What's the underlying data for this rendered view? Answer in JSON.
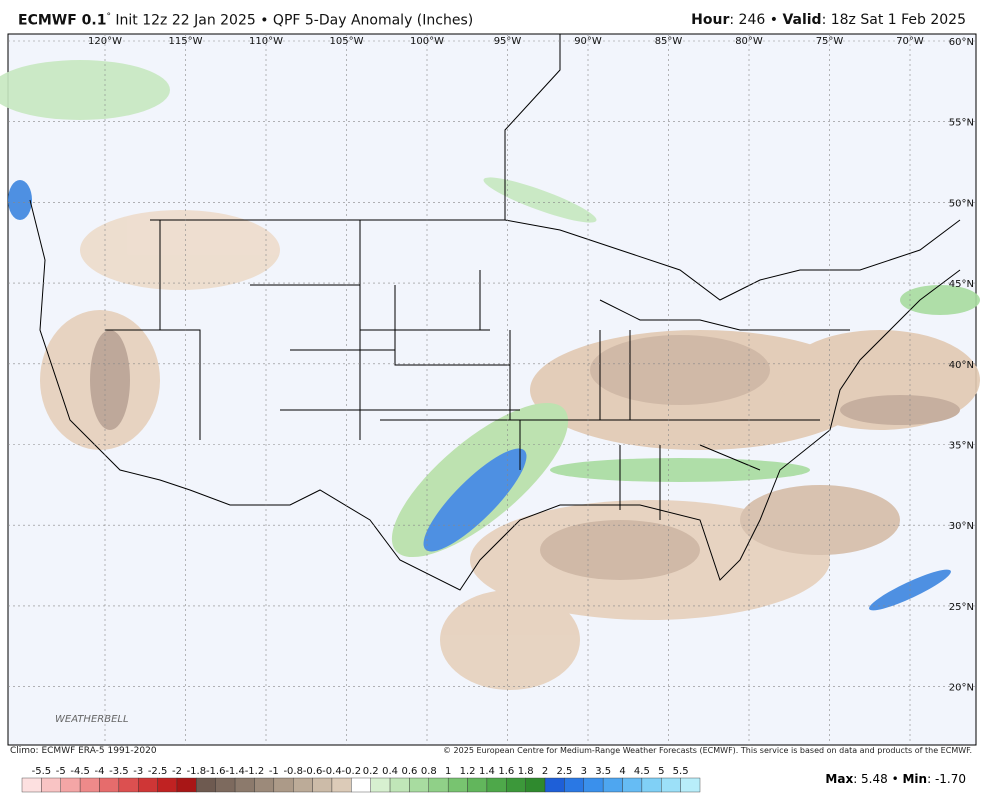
{
  "header": {
    "model": "ECMWF 0.1",
    "degree": "°",
    "run": "Init 12z 22 Jan 2025 • QPF 5-Day Anomaly (Inches)",
    "hour_label": "Hour",
    "hour_value": ": 246 •",
    "valid_label": "Valid",
    "valid_value": ": 18z Sat 1 Feb 2025"
  },
  "map": {
    "lon_labels": [
      "120°W",
      "115°W",
      "110°W",
      "105°W",
      "100°W",
      "95°W",
      "90°W",
      "85°W",
      "80°W",
      "75°W",
      "70°W"
    ],
    "lat_labels": [
      "60°N",
      "55°N",
      "50°N",
      "45°N",
      "40°N",
      "35°N",
      "30°N",
      "25°N",
      "20°N"
    ],
    "watermark": "WEATHERBELL"
  },
  "footer": {
    "climo": "Climo: ECMWF ERA-5 1991-2020",
    "copyright": "© 2025 European Centre for Medium-Range Weather Forecasts (ECMWF). This service is based on data and products of the ECMWF.",
    "colorbar": {
      "labels": [
        -5.5,
        -5,
        -4.5,
        -4,
        -3.5,
        -3,
        -2.5,
        -2,
        -1.8,
        -1.6,
        -1.4,
        -1.2,
        -1,
        -0.8,
        -0.6,
        -0.4,
        -0.2,
        0.2,
        0.4,
        0.6,
        0.8,
        1,
        1.2,
        1.4,
        1.6,
        1.8,
        2,
        2.5,
        3,
        3.5,
        4,
        4.5,
        5,
        5.5
      ],
      "colors": [
        "#fde0e0",
        "#f9c4c4",
        "#f4a6a6",
        "#ee8a8a",
        "#e66c6c",
        "#dc5050",
        "#cf3636",
        "#c02222",
        "#a81616",
        "#6e5a50",
        "#7d6a5e",
        "#8c7a6c",
        "#9c8a7a",
        "#ac9a88",
        "#bcab98",
        "#ccbba8",
        "#dccbb8",
        "#ffffff",
        "#d7f0d0",
        "#c0e6b8",
        "#a8dca0",
        "#90d088",
        "#78c470",
        "#62b65c",
        "#4ea84a",
        "#3c983a",
        "#2f8a2e",
        "#1e5fd8",
        "#2a78e4",
        "#3a90ec",
        "#4ea6f0",
        "#66bcf4",
        "#80d0f6",
        "#9ce0f8",
        "#b8eefa"
      ],
      "max_label": "Max",
      "max_value": ": 5.48 •",
      "min_label": "Min",
      "min_value": ": -1.70"
    }
  }
}
